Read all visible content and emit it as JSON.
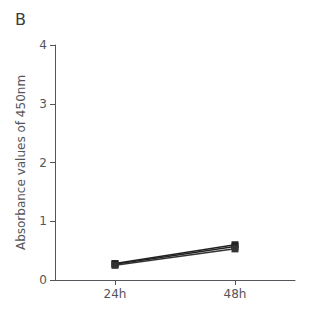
{
  "chart_data": {
    "type": "line",
    "title": "B",
    "y_label": "Absorbance values of 450nm",
    "categories": [
      "24h",
      "48h"
    ],
    "series": [
      {
        "color": "#222222",
        "marker": "square",
        "values": [
          0.27,
          0.57
        ]
      },
      {
        "color": "#222222",
        "marker": "square",
        "values": [
          0.28,
          0.6
        ]
      },
      {
        "color": "#333333",
        "marker": "square",
        "values": [
          0.25,
          0.53
        ]
      }
    ],
    "ylim": [
      0,
      4
    ],
    "yticks": [
      0,
      1,
      2,
      3,
      4
    ],
    "grid": false
  }
}
